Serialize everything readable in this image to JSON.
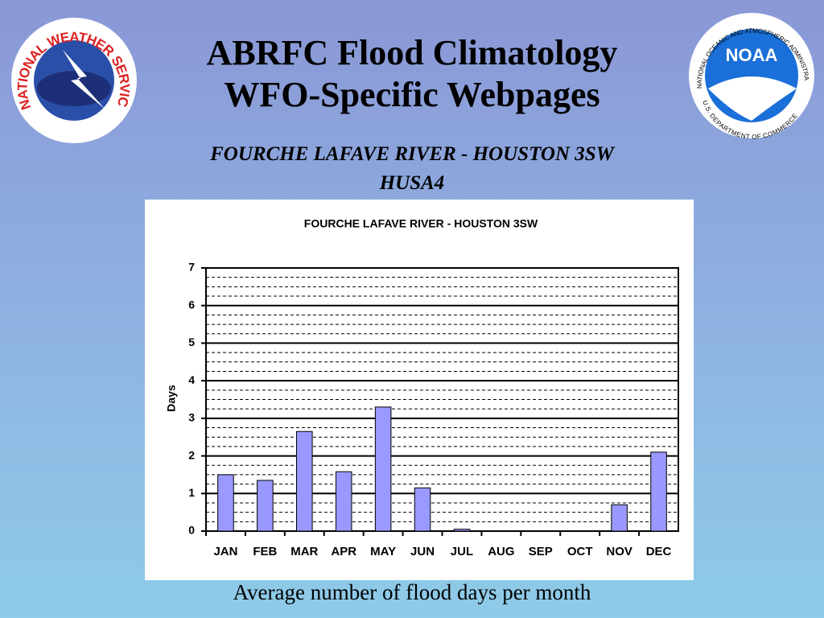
{
  "slide": {
    "title_lines": [
      "ABRFC Flood Climatology",
      "WFO-Specific Webpages"
    ],
    "subtitle_lines": [
      "FOURCHE LAFAVE RIVER - HOUSTON 3SW",
      "HUSA4"
    ],
    "caption": "Average number of flood days per month",
    "nws_logo_text": "NATIONAL WEATHER SERVICE",
    "noaa_logo": {
      "center": "NOAA",
      "ring_top": "NATIONAL OCEANIC AND ATMOSPHERIC ADMINISTRATION",
      "ring_bottom": "U.S. DEPARTMENT OF COMMERCE"
    }
  },
  "chart_data": {
    "type": "bar",
    "title": "FOURCHE LAFAVE RIVER - HOUSTON 3SW",
    "y_label": "Days",
    "categories": [
      "JAN",
      "FEB",
      "MAR",
      "APR",
      "MAY",
      "JUN",
      "JUL",
      "AUG",
      "SEP",
      "OCT",
      "NOV",
      "DEC"
    ],
    "values": [
      1.5,
      1.35,
      2.65,
      1.58,
      3.3,
      1.15,
      0.05,
      0,
      0,
      0,
      0.7,
      2.1
    ],
    "color": "#9999ff",
    "ylim": [
      0,
      7
    ],
    "yticks": [
      0,
      1,
      2,
      3,
      4,
      5,
      6,
      7
    ],
    "grid": true,
    "minor_grid_step": 0.25
  }
}
